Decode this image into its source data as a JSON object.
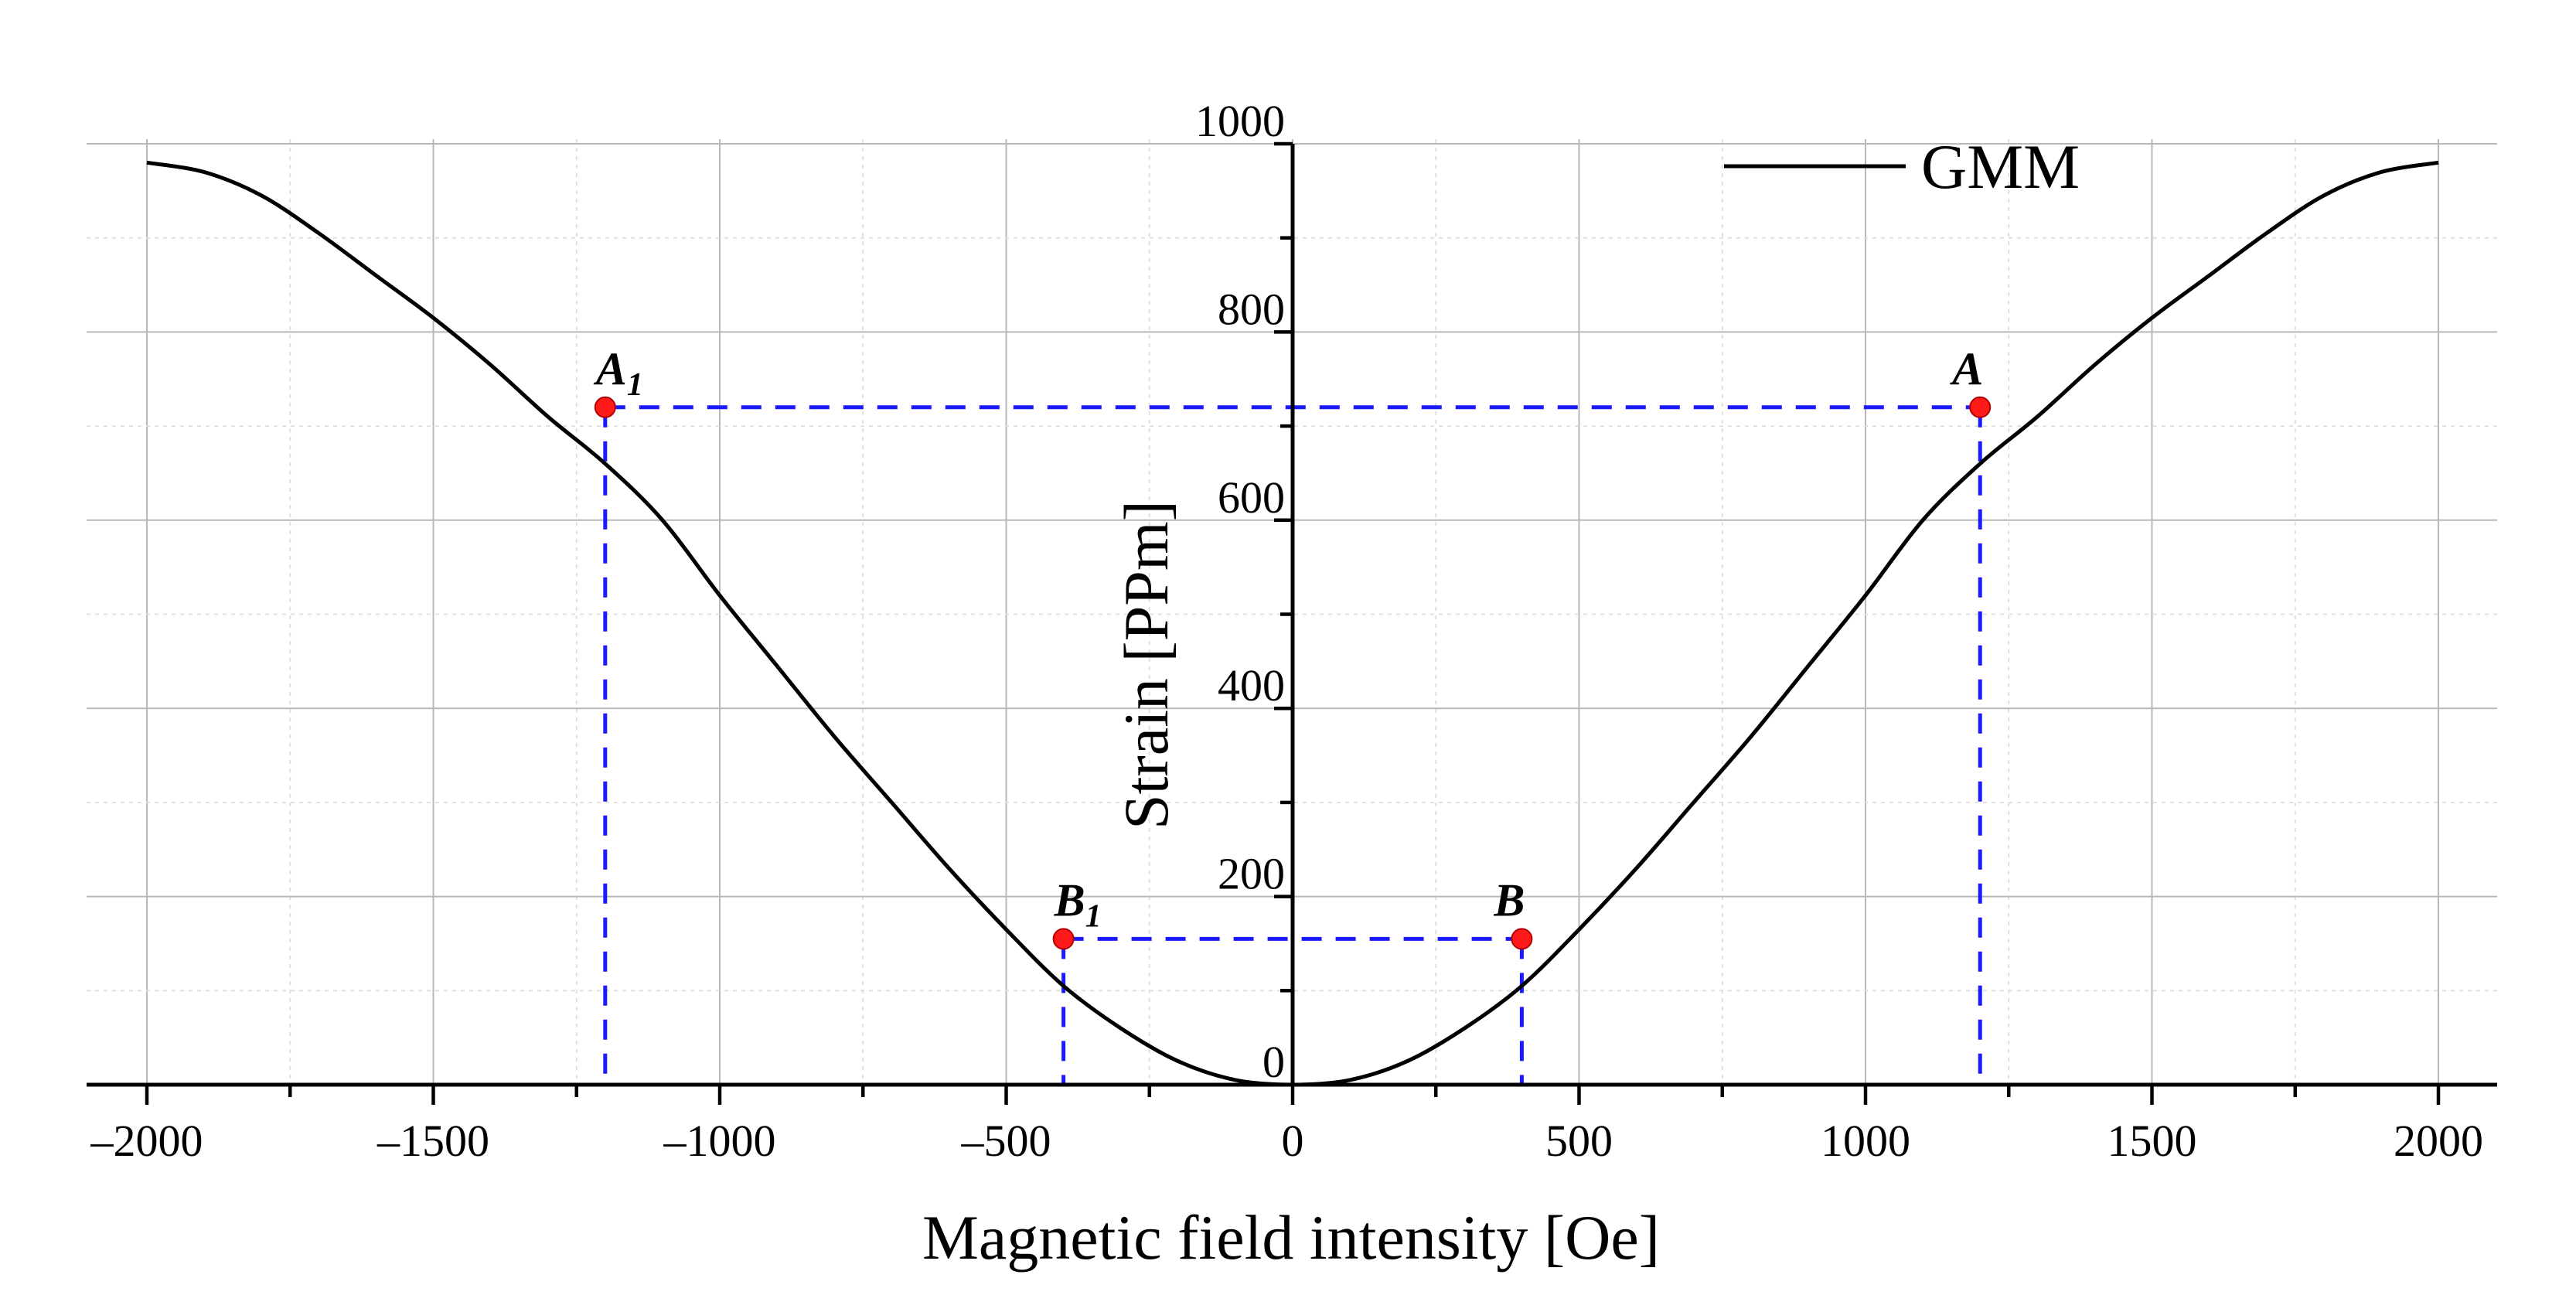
{
  "chart_data": {
    "type": "line",
    "title": "",
    "xlabel": "Magnetic field intensity [Oe]",
    "ylabel": "Strain [PPm]",
    "xlim": [
      -2100,
      2100
    ],
    "ylim": [
      0,
      1000
    ],
    "x_ticks": [
      -2000,
      -1500,
      -1000,
      -500,
      0,
      500,
      1000,
      1500,
      2000
    ],
    "x_tick_labels": [
      "–2000",
      "–1500",
      "–1000",
      "–500",
      "0",
      "500",
      "1000",
      "1500",
      "2000"
    ],
    "y_ticks": [
      0,
      200,
      400,
      600,
      800,
      1000
    ],
    "y_tick_labels": [
      "0",
      "200",
      "400",
      "600",
      "800",
      "1000"
    ],
    "grid": true,
    "legend": {
      "position": "top-right",
      "entries": [
        "GMM"
      ]
    },
    "series": [
      {
        "name": "GMM",
        "color": "#000000",
        "x": [
          -2000,
          -1900,
          -1800,
          -1700,
          -1600,
          -1500,
          -1400,
          -1300,
          -1200,
          -1100,
          -1000,
          -900,
          -800,
          -700,
          -600,
          -500,
          -400,
          -300,
          -200,
          -100,
          0,
          100,
          200,
          300,
          400,
          500,
          600,
          700,
          800,
          900,
          1000,
          1100,
          1200,
          1300,
          1400,
          1500,
          1600,
          1700,
          1800,
          1900,
          2000
        ],
        "y": [
          980,
          970,
          945,
          905,
          860,
          815,
          765,
          710,
          660,
          600,
          520,
          445,
          370,
          300,
          230,
          165,
          105,
          60,
          25,
          5,
          0,
          5,
          25,
          60,
          105,
          165,
          230,
          300,
          370,
          445,
          520,
          600,
          660,
          710,
          765,
          815,
          860,
          905,
          945,
          970,
          980
        ]
      }
    ],
    "points": [
      {
        "label": "A",
        "subscript": "",
        "x": 1200,
        "y": 720
      },
      {
        "label": "A",
        "subscript": "1",
        "x": -1200,
        "y": 720
      },
      {
        "label": "B",
        "subscript": "",
        "x": 400,
        "y": 155
      },
      {
        "label": "B",
        "subscript": "1",
        "x": -400,
        "y": 155
      }
    ],
    "guide_color": "#1a1aff",
    "marker_color": "#ff1a1a"
  }
}
